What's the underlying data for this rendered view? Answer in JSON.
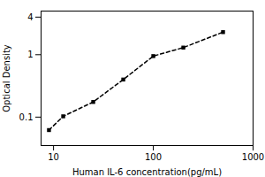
{
  "chart_data": {
    "type": "line",
    "x": [
      9,
      12.5,
      25,
      50,
      100,
      200,
      500
    ],
    "values": [
      0.062,
      0.103,
      0.175,
      0.4,
      0.95,
      1.3,
      2.3
    ],
    "xlabel": "Human IL-6 concentration(pg/mL)",
    "ylabel": "Optical Density",
    "xlim": [
      7.5,
      1000
    ],
    "ylim": [
      0.035,
      5
    ],
    "xticks": [
      10,
      100,
      1000
    ],
    "yticks": [
      0.1,
      1,
      4
    ],
    "log": true,
    "marker": "square",
    "line_style": "dashed",
    "grid": false
  }
}
